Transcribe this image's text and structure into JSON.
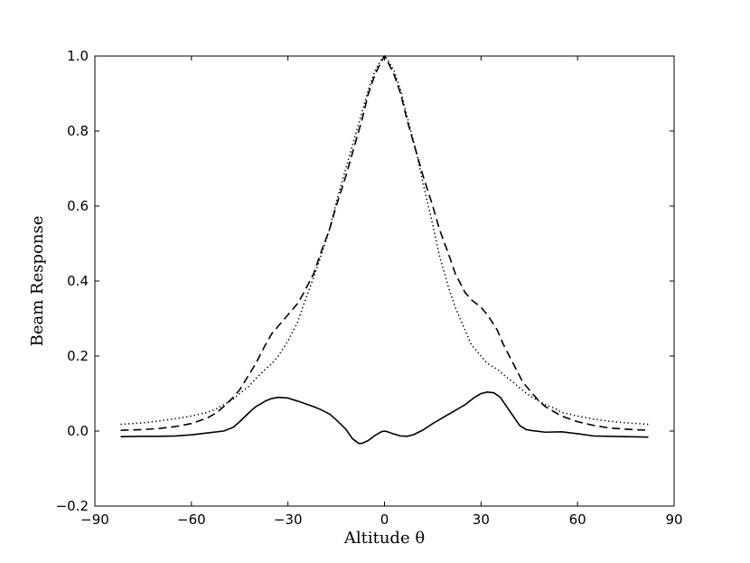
{
  "chart_data": {
    "type": "line",
    "xlabel": "Altitude θ",
    "ylabel": "Beam Response",
    "xlim": [
      -90,
      90
    ],
    "ylim": [
      -0.2,
      1.0
    ],
    "x_ticks": [
      -90,
      -60,
      -30,
      0,
      30,
      60,
      90
    ],
    "x_tick_labels": [
      "−90",
      "−60",
      "−30",
      "0",
      "30",
      "60",
      "90"
    ],
    "y_ticks": [
      -0.2,
      0.0,
      0.2,
      0.4,
      0.6,
      0.8,
      1.0
    ],
    "y_tick_labels": [
      "−0.2",
      "0.0",
      "0.2",
      "0.4",
      "0.6",
      "0.8",
      "1.0"
    ],
    "grid": false,
    "series": [
      {
        "style": "dashed",
        "color": "#000000",
        "points": [
          [
            -82,
            0.002
          ],
          [
            -75,
            0.004
          ],
          [
            -70,
            0.007
          ],
          [
            -65,
            0.012
          ],
          [
            -60,
            0.02
          ],
          [
            -55,
            0.035
          ],
          [
            -52,
            0.05
          ],
          [
            -50,
            0.065
          ],
          [
            -47,
            0.09
          ],
          [
            -45,
            0.11
          ],
          [
            -40,
            0.18
          ],
          [
            -37,
            0.23
          ],
          [
            -35,
            0.26
          ],
          [
            -32,
            0.29
          ],
          [
            -30,
            0.31
          ],
          [
            -27,
            0.34
          ],
          [
            -25,
            0.37
          ],
          [
            -22,
            0.42
          ],
          [
            -20,
            0.47
          ],
          [
            -17,
            0.54
          ],
          [
            -15,
            0.6
          ],
          [
            -12,
            0.68
          ],
          [
            -10,
            0.74
          ],
          [
            -7,
            0.83
          ],
          [
            -5,
            0.9
          ],
          [
            -3,
            0.95
          ],
          [
            -1,
            0.985
          ],
          [
            0,
            1.0
          ],
          [
            1,
            0.985
          ],
          [
            3,
            0.95
          ],
          [
            5,
            0.9
          ],
          [
            7,
            0.83
          ],
          [
            10,
            0.74
          ],
          [
            12,
            0.68
          ],
          [
            15,
            0.6
          ],
          [
            17,
            0.54
          ],
          [
            20,
            0.47
          ],
          [
            22,
            0.42
          ],
          [
            25,
            0.37
          ],
          [
            27,
            0.35
          ],
          [
            30,
            0.33
          ],
          [
            32,
            0.31
          ],
          [
            35,
            0.27
          ],
          [
            37,
            0.23
          ],
          [
            40,
            0.18
          ],
          [
            43,
            0.13
          ],
          [
            45,
            0.11
          ],
          [
            48,
            0.08
          ],
          [
            50,
            0.065
          ],
          [
            53,
            0.05
          ],
          [
            55,
            0.04
          ],
          [
            60,
            0.025
          ],
          [
            65,
            0.015
          ],
          [
            70,
            0.008
          ],
          [
            75,
            0.005
          ],
          [
            82,
            0.002
          ]
        ]
      },
      {
        "style": "dotted",
        "color": "#000000",
        "points": [
          [
            -82,
            0.018
          ],
          [
            -75,
            0.022
          ],
          [
            -70,
            0.027
          ],
          [
            -65,
            0.033
          ],
          [
            -60,
            0.04
          ],
          [
            -55,
            0.05
          ],
          [
            -52,
            0.06
          ],
          [
            -50,
            0.07
          ],
          [
            -47,
            0.085
          ],
          [
            -45,
            0.1
          ],
          [
            -42,
            0.12
          ],
          [
            -40,
            0.14
          ],
          [
            -37,
            0.165
          ],
          [
            -35,
            0.18
          ],
          [
            -33,
            0.2
          ],
          [
            -30,
            0.24
          ],
          [
            -27,
            0.29
          ],
          [
            -25,
            0.34
          ],
          [
            -22,
            0.41
          ],
          [
            -20,
            0.46
          ],
          [
            -17,
            0.54
          ],
          [
            -15,
            0.61
          ],
          [
            -12,
            0.7
          ],
          [
            -10,
            0.76
          ],
          [
            -7,
            0.85
          ],
          [
            -5,
            0.91
          ],
          [
            -3,
            0.96
          ],
          [
            -1,
            0.99
          ],
          [
            0,
            1.0
          ],
          [
            1,
            0.99
          ],
          [
            3,
            0.96
          ],
          [
            5,
            0.91
          ],
          [
            7,
            0.84
          ],
          [
            10,
            0.74
          ],
          [
            12,
            0.66
          ],
          [
            15,
            0.55
          ],
          [
            17,
            0.47
          ],
          [
            20,
            0.38
          ],
          [
            22,
            0.33
          ],
          [
            25,
            0.27
          ],
          [
            27,
            0.23
          ],
          [
            30,
            0.2
          ],
          [
            32,
            0.18
          ],
          [
            35,
            0.165
          ],
          [
            37,
            0.15
          ],
          [
            40,
            0.13
          ],
          [
            42,
            0.115
          ],
          [
            45,
            0.095
          ],
          [
            48,
            0.08
          ],
          [
            50,
            0.07
          ],
          [
            53,
            0.06
          ],
          [
            55,
            0.05
          ],
          [
            60,
            0.04
          ],
          [
            65,
            0.032
          ],
          [
            70,
            0.026
          ],
          [
            75,
            0.022
          ],
          [
            82,
            0.018
          ]
        ]
      },
      {
        "style": "solid",
        "color": "#000000",
        "points": [
          [
            -82,
            -0.015
          ],
          [
            -75,
            -0.014
          ],
          [
            -70,
            -0.014
          ],
          [
            -65,
            -0.013
          ],
          [
            -60,
            -0.01
          ],
          [
            -55,
            -0.005
          ],
          [
            -50,
            0.0
          ],
          [
            -47,
            0.01
          ],
          [
            -45,
            0.025
          ],
          [
            -42,
            0.05
          ],
          [
            -40,
            0.065
          ],
          [
            -37,
            0.08
          ],
          [
            -35,
            0.087
          ],
          [
            -33,
            0.09
          ],
          [
            -30,
            0.088
          ],
          [
            -27,
            0.08
          ],
          [
            -25,
            0.074
          ],
          [
            -22,
            0.065
          ],
          [
            -20,
            0.058
          ],
          [
            -17,
            0.045
          ],
          [
            -15,
            0.03
          ],
          [
            -12,
            0.005
          ],
          [
            -10,
            -0.02
          ],
          [
            -8,
            -0.033
          ],
          [
            -7,
            -0.033
          ],
          [
            -5,
            -0.025
          ],
          [
            -3,
            -0.012
          ],
          [
            -1,
            -0.002
          ],
          [
            0,
            0.0
          ],
          [
            1,
            -0.002
          ],
          [
            3,
            -0.008
          ],
          [
            5,
            -0.013
          ],
          [
            7,
            -0.014
          ],
          [
            9,
            -0.01
          ],
          [
            12,
            0.003
          ],
          [
            15,
            0.02
          ],
          [
            18,
            0.035
          ],
          [
            20,
            0.045
          ],
          [
            22,
            0.055
          ],
          [
            25,
            0.07
          ],
          [
            28,
            0.09
          ],
          [
            30,
            0.1
          ],
          [
            32,
            0.104
          ],
          [
            34,
            0.102
          ],
          [
            36,
            0.09
          ],
          [
            38,
            0.065
          ],
          [
            40,
            0.04
          ],
          [
            42,
            0.015
          ],
          [
            44,
            0.004
          ],
          [
            46,
            0.001
          ],
          [
            50,
            -0.003
          ],
          [
            55,
            -0.002
          ],
          [
            60,
            -0.007
          ],
          [
            65,
            -0.013
          ],
          [
            70,
            -0.014
          ],
          [
            75,
            -0.015
          ],
          [
            82,
            -0.016
          ]
        ]
      }
    ]
  }
}
